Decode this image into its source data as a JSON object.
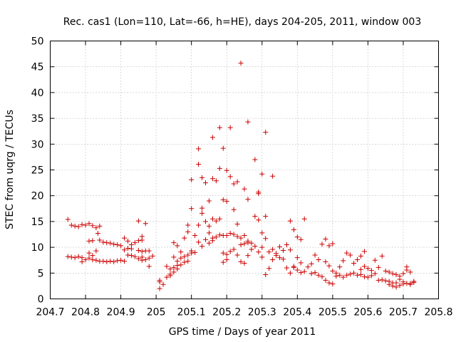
{
  "chart_data": {
    "type": "scatter",
    "title": "Rec. cas1 (Lon=110, Lat=-66, h=HE), days 204-205, 2011, window 003",
    "xlabel": "GPS time / Days of year 2011",
    "ylabel": "STEC from uqrg / TECUs",
    "xlim": [
      204.7,
      205.8
    ],
    "ylim": [
      0,
      50
    ],
    "xticks": [
      204.7,
      204.8,
      204.9,
      205,
      205.1,
      205.2,
      205.3,
      205.4,
      205.5,
      205.6,
      205.7,
      205.8
    ],
    "xtick_labels": [
      "204.7",
      "204.8",
      "204.9",
      "205",
      "205.1",
      "205.2",
      "205.3",
      "205.4",
      "205.5",
      "205.6",
      "205.7",
      "205.8"
    ],
    "yticks": [
      0,
      5,
      10,
      15,
      20,
      25,
      30,
      35,
      40,
      45,
      50
    ],
    "ytick_labels": [
      "0",
      "5",
      "10",
      "15",
      "20",
      "25",
      "30",
      "35",
      "40",
      "45",
      "50"
    ],
    "grid": true,
    "marker": "+",
    "color": "#cc0000",
    "series": [
      {
        "name": "STEC",
        "points": [
          [
            204.75,
            15.4
          ],
          [
            204.76,
            14.3
          ],
          [
            204.77,
            14.1
          ],
          [
            204.78,
            14.0
          ],
          [
            204.79,
            14.4
          ],
          [
            204.8,
            14.3
          ],
          [
            204.81,
            14.6
          ],
          [
            204.82,
            14.2
          ],
          [
            204.83,
            13.8
          ],
          [
            204.84,
            14.1
          ],
          [
            204.835,
            12.7
          ],
          [
            204.84,
            11.4
          ],
          [
            204.85,
            11.0
          ],
          [
            204.86,
            10.9
          ],
          [
            204.87,
            10.8
          ],
          [
            204.88,
            10.6
          ],
          [
            204.89,
            10.5
          ],
          [
            204.9,
            10.3
          ],
          [
            204.75,
            8.2
          ],
          [
            204.76,
            8.1
          ],
          [
            204.77,
            8.0
          ],
          [
            204.78,
            8.2
          ],
          [
            204.79,
            8.0
          ],
          [
            204.8,
            7.6
          ],
          [
            204.81,
            7.9
          ],
          [
            204.82,
            7.6
          ],
          [
            204.83,
            7.5
          ],
          [
            204.84,
            7.3
          ],
          [
            204.85,
            7.3
          ],
          [
            204.86,
            7.2
          ],
          [
            204.87,
            7.3
          ],
          [
            204.88,
            7.2
          ],
          [
            204.89,
            7.4
          ],
          [
            204.9,
            7.5
          ],
          [
            204.91,
            7.3
          ],
          [
            204.79,
            7.2
          ],
          [
            204.81,
            8.9
          ],
          [
            204.82,
            8.4
          ],
          [
            204.83,
            9.3
          ],
          [
            204.81,
            11.2
          ],
          [
            204.82,
            11.3
          ],
          [
            204.91,
            11.8
          ],
          [
            204.92,
            11.2
          ],
          [
            204.93,
            10.5
          ],
          [
            204.91,
            9.5
          ],
          [
            204.92,
            9.8
          ],
          [
            204.93,
            9.7
          ],
          [
            204.94,
            10.9
          ],
          [
            204.95,
            11.3
          ],
          [
            204.96,
            11.4
          ],
          [
            204.96,
            12.1
          ],
          [
            204.95,
            15.1
          ],
          [
            204.97,
            14.6
          ],
          [
            204.92,
            8.5
          ],
          [
            204.93,
            8.4
          ],
          [
            204.94,
            8.2
          ],
          [
            204.95,
            7.8
          ],
          [
            204.96,
            7.5
          ],
          [
            204.97,
            7.6
          ],
          [
            204.98,
            7.9
          ],
          [
            204.95,
            9.4
          ],
          [
            204.96,
            9.2
          ],
          [
            204.97,
            9.3
          ],
          [
            204.98,
            9.3
          ],
          [
            204.96,
            8.1
          ],
          [
            204.98,
            6.3
          ],
          [
            204.99,
            8.3
          ],
          [
            205.01,
            3.3
          ],
          [
            205.01,
            3.6
          ],
          [
            205.01,
            2.0
          ],
          [
            205.02,
            2.8
          ],
          [
            205.03,
            4.2
          ],
          [
            205.04,
            4.8
          ],
          [
            205.05,
            5.2
          ],
          [
            205.04,
            5.8
          ],
          [
            205.05,
            6.1
          ],
          [
            205.06,
            6.5
          ],
          [
            205.03,
            6.3
          ],
          [
            205.04,
            4.5
          ],
          [
            205.05,
            8.1
          ],
          [
            205.06,
            7.3
          ],
          [
            205.07,
            7.9
          ],
          [
            205.08,
            8.2
          ],
          [
            205.09,
            8.5
          ],
          [
            205.06,
            5.8
          ],
          [
            205.07,
            6.6
          ],
          [
            205.08,
            7.1
          ],
          [
            205.09,
            7.3
          ],
          [
            205.05,
            10.9
          ],
          [
            205.06,
            10.3
          ],
          [
            205.07,
            9.1
          ],
          [
            205.08,
            11.8
          ],
          [
            205.09,
            13.0
          ],
          [
            205.09,
            14.3
          ],
          [
            205.1,
            8.9
          ],
          [
            205.1,
            9.3
          ],
          [
            205.11,
            9.0
          ],
          [
            205.1,
            17.5
          ],
          [
            205.1,
            23.1
          ],
          [
            205.12,
            29.1
          ],
          [
            205.12,
            26.1
          ],
          [
            205.13,
            23.5
          ],
          [
            205.14,
            22.5
          ],
          [
            205.15,
            19.0
          ],
          [
            205.13,
            17.6
          ],
          [
            205.13,
            16.6
          ],
          [
            205.14,
            15.0
          ],
          [
            205.15,
            14.1
          ],
          [
            205.12,
            14.3
          ],
          [
            205.11,
            12.3
          ],
          [
            205.12,
            11.0
          ],
          [
            205.13,
            10.2
          ],
          [
            205.14,
            11.5
          ],
          [
            205.15,
            12.8
          ],
          [
            205.16,
            11.8
          ],
          [
            205.16,
            15.5
          ],
          [
            205.17,
            15.1
          ],
          [
            205.18,
            15.5
          ],
          [
            205.16,
            23.3
          ],
          [
            205.17,
            22.9
          ],
          [
            205.18,
            25.3
          ],
          [
            205.19,
            29.2
          ],
          [
            205.16,
            31.3
          ],
          [
            205.18,
            33.2
          ],
          [
            205.19,
            19.2
          ],
          [
            205.2,
            18.9
          ],
          [
            205.2,
            24.9
          ],
          [
            205.21,
            23.7
          ],
          [
            205.21,
            33.2
          ],
          [
            205.22,
            22.3
          ],
          [
            205.23,
            22.7
          ],
          [
            205.22,
            17.3
          ],
          [
            205.23,
            14.5
          ],
          [
            205.24,
            45.7
          ],
          [
            205.25,
            21.3
          ],
          [
            205.26,
            19.3
          ],
          [
            205.26,
            34.3
          ],
          [
            205.28,
            27.0
          ],
          [
            205.29,
            20.4
          ],
          [
            205.29,
            20.7
          ],
          [
            205.3,
            12.8
          ],
          [
            205.31,
            11.7
          ],
          [
            205.3,
            24.2
          ],
          [
            205.31,
            32.3
          ],
          [
            205.33,
            23.8
          ],
          [
            205.31,
            16.0
          ],
          [
            205.28,
            16.0
          ],
          [
            205.29,
            15.3
          ],
          [
            205.3,
            10.0
          ],
          [
            205.15,
            10.8
          ],
          [
            205.16,
            11.3
          ],
          [
            205.17,
            12.0
          ],
          [
            205.18,
            12.4
          ],
          [
            205.19,
            12.3
          ],
          [
            205.2,
            12.3
          ],
          [
            205.21,
            12.7
          ],
          [
            205.22,
            12.5
          ],
          [
            205.23,
            12.1
          ],
          [
            205.24,
            11.8
          ],
          [
            205.25,
            12.3
          ],
          [
            205.26,
            11.2
          ],
          [
            205.19,
            8.9
          ],
          [
            205.2,
            8.6
          ],
          [
            205.21,
            9.2
          ],
          [
            205.22,
            9.6
          ],
          [
            205.23,
            8.5
          ],
          [
            205.24,
            10.5
          ],
          [
            205.25,
            10.7
          ],
          [
            205.26,
            10.9
          ],
          [
            205.27,
            10.8
          ],
          [
            205.28,
            10.2
          ],
          [
            205.29,
            9.1
          ],
          [
            205.3,
            8.1
          ],
          [
            205.19,
            7.1
          ],
          [
            205.2,
            7.6
          ],
          [
            205.24,
            7.2
          ],
          [
            205.25,
            6.9
          ],
          [
            205.26,
            8.4
          ],
          [
            205.27,
            9.6
          ],
          [
            205.31,
            4.7
          ],
          [
            205.32,
            5.9
          ],
          [
            205.33,
            7.6
          ],
          [
            205.34,
            8.4
          ],
          [
            205.35,
            8.0
          ],
          [
            205.36,
            7.7
          ],
          [
            205.37,
            6.0
          ],
          [
            205.38,
            5.0
          ],
          [
            205.39,
            6.1
          ],
          [
            205.4,
            5.6
          ],
          [
            205.41,
            5.1
          ],
          [
            205.42,
            5.3
          ],
          [
            205.32,
            9.1
          ],
          [
            205.33,
            9.6
          ],
          [
            205.34,
            8.8
          ],
          [
            205.35,
            10.1
          ],
          [
            205.36,
            9.4
          ],
          [
            205.37,
            10.5
          ],
          [
            205.38,
            9.5
          ],
          [
            205.39,
            13.4
          ],
          [
            205.4,
            12.0
          ],
          [
            205.41,
            11.5
          ],
          [
            205.42,
            15.5
          ],
          [
            205.38,
            15.1
          ],
          [
            205.39,
            6.3
          ],
          [
            205.4,
            8.0
          ],
          [
            205.41,
            7.0
          ],
          [
            205.43,
            6.2
          ],
          [
            205.44,
            6.8
          ],
          [
            205.45,
            5.1
          ],
          [
            205.44,
            4.9
          ],
          [
            205.46,
            4.6
          ],
          [
            205.47,
            4.3
          ],
          [
            205.48,
            3.6
          ],
          [
            205.49,
            3.1
          ],
          [
            205.5,
            2.9
          ],
          [
            205.45,
            8.5
          ],
          [
            205.46,
            7.6
          ],
          [
            205.47,
            10.6
          ],
          [
            205.48,
            11.6
          ],
          [
            205.49,
            10.3
          ],
          [
            205.5,
            10.7
          ],
          [
            205.48,
            7.2
          ],
          [
            205.49,
            6.4
          ],
          [
            205.5,
            5.4
          ],
          [
            205.51,
            5.0
          ],
          [
            205.52,
            6.2
          ],
          [
            205.53,
            7.4
          ],
          [
            205.51,
            4.4
          ],
          [
            205.52,
            4.6
          ],
          [
            205.53,
            4.2
          ],
          [
            205.54,
            4.6
          ],
          [
            205.55,
            4.8
          ],
          [
            205.56,
            5.0
          ],
          [
            205.54,
            8.9
          ],
          [
            205.55,
            8.5
          ],
          [
            205.56,
            6.9
          ],
          [
            205.57,
            7.6
          ],
          [
            205.58,
            8.3
          ],
          [
            205.59,
            9.2
          ],
          [
            205.57,
            4.6
          ],
          [
            205.58,
            4.7
          ],
          [
            205.59,
            4.3
          ],
          [
            205.6,
            4.2
          ],
          [
            205.61,
            4.5
          ],
          [
            205.62,
            4.9
          ],
          [
            205.58,
            5.7
          ],
          [
            205.59,
            6.3
          ],
          [
            205.6,
            5.9
          ],
          [
            205.61,
            5.5
          ],
          [
            205.62,
            7.5
          ],
          [
            205.63,
            6.1
          ],
          [
            205.63,
            3.6
          ],
          [
            205.64,
            3.7
          ],
          [
            205.65,
            3.5
          ],
          [
            205.66,
            3.4
          ],
          [
            205.67,
            3.1
          ],
          [
            205.68,
            3.1
          ],
          [
            205.64,
            8.3
          ],
          [
            205.65,
            5.4
          ],
          [
            205.66,
            5.2
          ],
          [
            205.67,
            4.9
          ],
          [
            205.68,
            4.7
          ],
          [
            205.69,
            4.4
          ],
          [
            205.66,
            2.8
          ],
          [
            205.67,
            2.5
          ],
          [
            205.68,
            2.3
          ],
          [
            205.69,
            2.6
          ],
          [
            205.7,
            2.9
          ],
          [
            205.71,
            3.0
          ],
          [
            205.69,
            3.8
          ],
          [
            205.7,
            4.9
          ],
          [
            205.71,
            5.6
          ],
          [
            205.72,
            5.2
          ],
          [
            205.73,
            3.2
          ],
          [
            205.72,
            3.0
          ],
          [
            205.7,
            3.3
          ],
          [
            205.71,
            6.2
          ],
          [
            205.73,
            3.4
          ],
          [
            205.72,
            2.8
          ]
        ]
      }
    ]
  }
}
